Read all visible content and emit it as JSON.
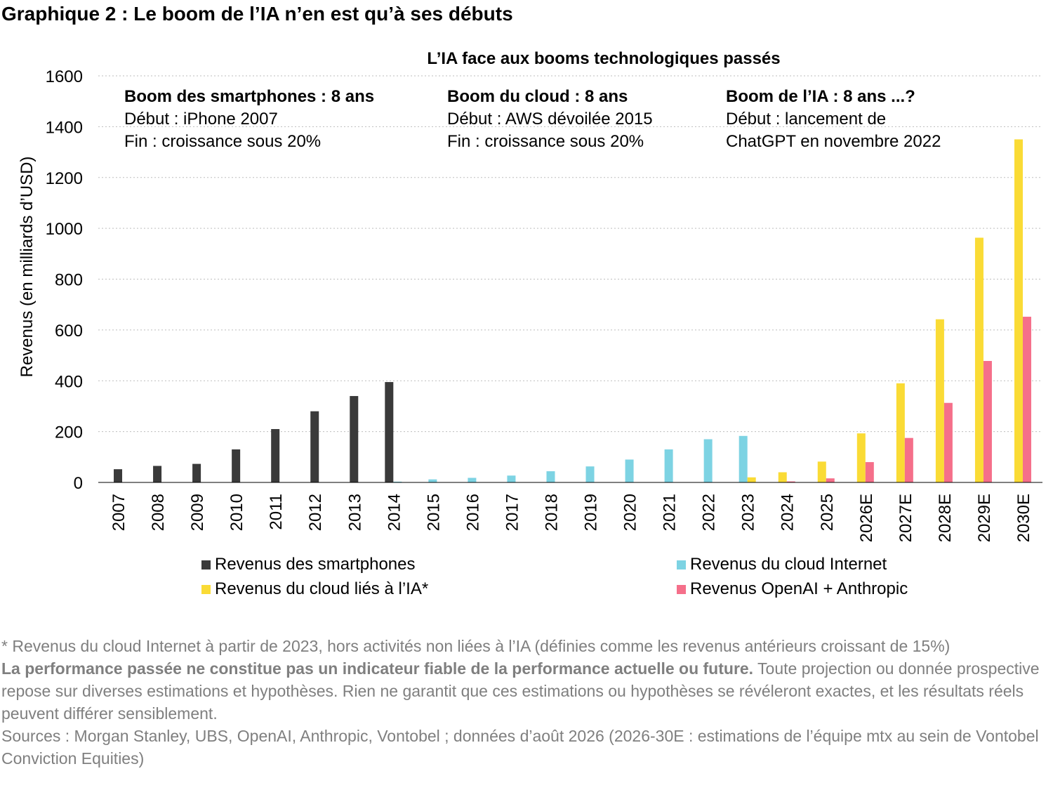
{
  "page": {
    "title": "Graphique 2 : Le boom de l’IA n’en est qu’à ses débuts"
  },
  "chart_data": {
    "type": "bar",
    "title": "L’IA face aux booms technologiques passés",
    "xlabel": "",
    "ylabel": "Revenus (en milliards d’USD)",
    "ylim": [
      0,
      1600
    ],
    "yticks": [
      "0",
      "200",
      "400",
      "600",
      "800",
      "1000",
      "1200",
      "1400",
      "1600"
    ],
    "grid": "horizontal dotted",
    "legend_position": "bottom",
    "categories": [
      "2007",
      "2008",
      "2009",
      "2010",
      "2011",
      "2012",
      "2013",
      "2014",
      "2015",
      "2016",
      "2017",
      "2018",
      "2019",
      "2020",
      "2021",
      "2022",
      "2023",
      "2024",
      "2025",
      "2026E",
      "2027E",
      "2028E",
      "2029E",
      "2030E"
    ],
    "series": [
      {
        "name": "Revenus des smartphones",
        "color": "#3a3a3a",
        "values": [
          52,
          65,
          73,
          130,
          210,
          280,
          340,
          395,
          null,
          null,
          null,
          null,
          null,
          null,
          null,
          null,
          null,
          null,
          null,
          null,
          null,
          null,
          null,
          null
        ]
      },
      {
        "name": "Revenus du cloud Internet",
        "color": "#7dd3e3",
        "values": [
          null,
          null,
          null,
          null,
          null,
          null,
          null,
          3,
          12,
          18,
          27,
          44,
          63,
          90,
          130,
          170,
          183,
          null,
          null,
          null,
          null,
          null,
          null,
          null
        ]
      },
      {
        "name": "Revenus du cloud liés à l’IA*",
        "color": "#fadb35",
        "values": [
          null,
          null,
          null,
          null,
          null,
          null,
          null,
          null,
          null,
          null,
          null,
          null,
          null,
          null,
          null,
          null,
          20,
          40,
          82,
          193,
          390,
          642,
          963,
          1350
        ]
      },
      {
        "name": "Revenus OpenAI + Anthropic",
        "color": "#f56f8a",
        "values": [
          null,
          null,
          null,
          null,
          null,
          null,
          null,
          null,
          null,
          null,
          null,
          null,
          null,
          null,
          null,
          null,
          null,
          4,
          16,
          80,
          175,
          313,
          478,
          652
        ]
      }
    ],
    "annotations": [
      {
        "title": "Boom des smartphones : 8 ans",
        "line1": "Début : iPhone 2007",
        "line2": "Fin : croissance sous 20%"
      },
      {
        "title": "Boom du cloud : 8 ans",
        "line1": "Début : AWS dévoilée 2015",
        "line2": "Fin : croissance sous 20%"
      },
      {
        "title": "Boom de l’IA : 8 ans ...?",
        "line1": "Début : lancement de",
        "line2": "ChatGPT en novembre 2022"
      }
    ]
  },
  "footnotes": {
    "note": "* Revenus du cloud Internet à partir de 2023, hors activités non liées à l’IA (définies comme les revenus antérieurs croissant de 15%)",
    "disclaimer_bold": "La performance passée ne constitue pas un indicateur fiable de la performance actuelle ou future.",
    "disclaimer_rest": " Toute projection ou donnée prospective repose sur diverses estimations et hypothèses. Rien ne garantit que ces estimations ou hypothèses se révéleront exactes, et les résultats réels peuvent différer sensiblement.",
    "sources": "Sources : Morgan Stanley, UBS, OpenAI, Anthropic, Vontobel ; données d’août 2026 (2026-30E : estimations de l’équipe mtx au sein de Vontobel Conviction Equities)"
  }
}
